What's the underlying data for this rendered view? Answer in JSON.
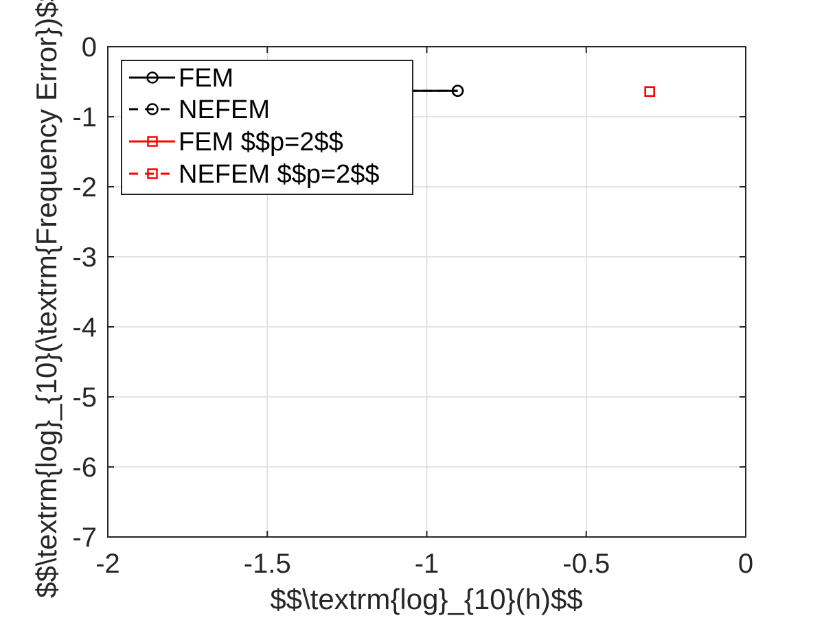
{
  "chart_data": {
    "type": "line",
    "xlabel": "$$\\textrm{log}_{10}(h)$$",
    "ylabel": "$$\\textrm{log}_{10}(\\textrm{Frequency Error})$$",
    "xlim": [
      -2,
      0
    ],
    "ylim": [
      -7,
      0
    ],
    "xticks": [
      -2,
      -1.5,
      -1,
      -0.5,
      0
    ],
    "yticks": [
      0,
      -1,
      -2,
      -3,
      -4,
      -5,
      -6,
      -7
    ],
    "xtick_labels": [
      "-2",
      "-1.5",
      "-1",
      "-0.5",
      "0"
    ],
    "ytick_labels": [
      "0",
      "-1",
      "-2",
      "-3",
      "-4",
      "-5",
      "-6",
      "-7"
    ],
    "grid": true,
    "legend_position": "top-left",
    "series": [
      {
        "name": "FEM",
        "color": "#000000",
        "line": "solid",
        "marker": "circle",
        "x": [
          -1.25,
          -0.903
        ],
        "y": [
          -0.63,
          -0.63
        ]
      },
      {
        "name": "NEFEM",
        "color": "#000000",
        "line": "dashed",
        "marker": "circle",
        "x": [
          -1.25,
          -0.903
        ],
        "y": [
          -0.63,
          -0.63
        ]
      },
      {
        "name": "FEM $$p=2$$",
        "color": "#ff0000",
        "line": "solid",
        "marker": "square",
        "x": [
          -0.301
        ],
        "y": [
          -0.64
        ]
      },
      {
        "name": "NEFEM $$p=2$$",
        "color": "#ff0000",
        "line": "dashed",
        "marker": "square",
        "x": [
          -0.301
        ],
        "y": [
          -0.64
        ]
      }
    ]
  }
}
